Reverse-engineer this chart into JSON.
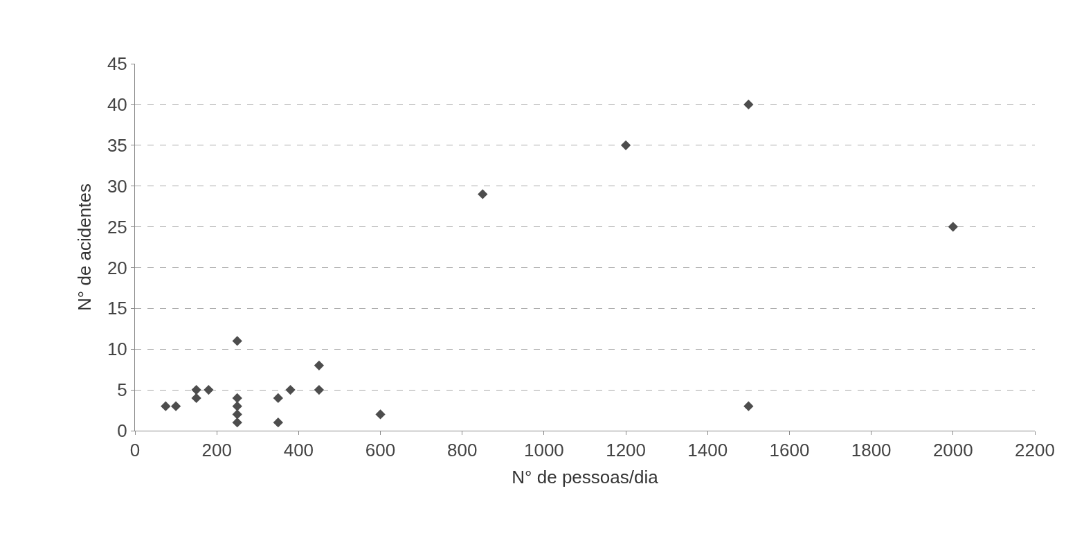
{
  "chart_data": {
    "type": "scatter",
    "xlabel": "N° de pessoas/dia",
    "ylabel": "N° de acidentes",
    "x": [
      75,
      100,
      150,
      150,
      180,
      250,
      250,
      250,
      250,
      250,
      350,
      350,
      380,
      450,
      450,
      600,
      850,
      1200,
      1500,
      1500,
      2000
    ],
    "values": [
      3,
      3,
      5,
      4,
      5,
      11,
      4,
      3,
      2,
      1,
      4,
      1,
      5,
      8,
      5,
      2,
      29,
      35,
      40,
      3,
      25
    ],
    "color": "#4d4d4d",
    "marker": "diamond",
    "grid": "y",
    "line_style": "dashed",
    "xlim": [
      0,
      2200
    ],
    "xticks": [
      0,
      200,
      400,
      600,
      800,
      1000,
      1200,
      1400,
      1600,
      1800,
      2000,
      2200
    ],
    "ylim": [
      0,
      45
    ],
    "yticks": [
      0,
      5,
      10,
      15,
      20,
      25,
      30,
      35,
      40,
      45
    ]
  }
}
